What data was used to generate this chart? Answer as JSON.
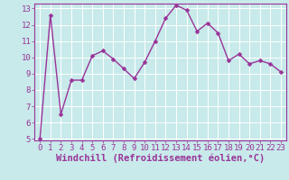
{
  "x": [
    0,
    1,
    2,
    3,
    4,
    5,
    6,
    7,
    8,
    9,
    10,
    11,
    12,
    13,
    14,
    15,
    16,
    17,
    18,
    19,
    20,
    21,
    22,
    23
  ],
  "y": [
    5.0,
    12.6,
    6.5,
    8.6,
    8.6,
    10.1,
    10.4,
    9.9,
    9.3,
    8.7,
    9.7,
    11.0,
    12.4,
    13.2,
    12.9,
    11.6,
    12.1,
    11.5,
    9.8,
    10.2,
    9.6,
    9.8,
    9.6,
    9.1
  ],
  "line_color": "#993399",
  "marker_color": "#993399",
  "bg_color": "#c8eaea",
  "grid_color": "#aadddd",
  "axis_color": "#993399",
  "xlabel": "Windchill (Refroidissement éolien,°C)",
  "ylim": [
    5,
    13
  ],
  "xlim": [
    -0.5,
    23.5
  ],
  "yticks": [
    5,
    6,
    7,
    8,
    9,
    10,
    11,
    12,
    13
  ],
  "xticks": [
    0,
    1,
    2,
    3,
    4,
    5,
    6,
    7,
    8,
    9,
    10,
    11,
    12,
    13,
    14,
    15,
    16,
    17,
    18,
    19,
    20,
    21,
    22,
    23
  ],
  "xlabel_fontsize": 7.5,
  "tick_fontsize": 6.5,
  "line_width": 1.0,
  "marker_size": 2.5
}
